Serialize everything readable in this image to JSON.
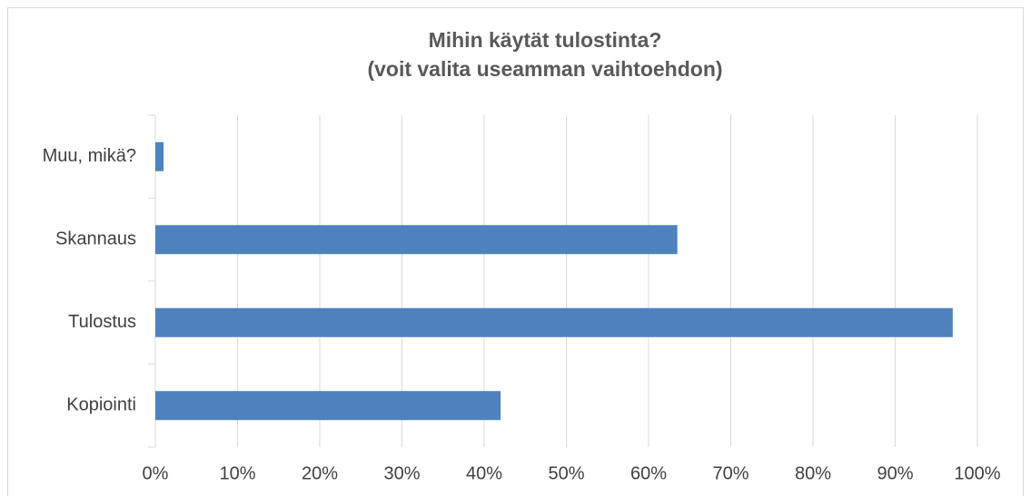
{
  "chart_data": {
    "type": "bar",
    "orientation": "horizontal",
    "title": "Mihin käytät tulostinta?",
    "subtitle": "(voit valita useamman vaihtoehdon)",
    "categories": [
      "Muu, mikä?",
      "Skannaus",
      "Tulostus",
      "Kopiointi"
    ],
    "values": [
      1,
      63.5,
      97,
      42
    ],
    "color": "#4f81bd",
    "xlim": [
      0,
      100
    ],
    "xticks": [
      {
        "value": 0,
        "label": "0%"
      },
      {
        "value": 10,
        "label": "10%"
      },
      {
        "value": 20,
        "label": "20%"
      },
      {
        "value": 30,
        "label": "30%"
      },
      {
        "value": 40,
        "label": "40%"
      },
      {
        "value": 50,
        "label": "50%"
      },
      {
        "value": 60,
        "label": "60%"
      },
      {
        "value": 70,
        "label": "70%"
      },
      {
        "value": 80,
        "label": "80%"
      },
      {
        "value": 90,
        "label": "90%"
      },
      {
        "value": 100,
        "label": "100%"
      }
    ],
    "grid": true
  }
}
